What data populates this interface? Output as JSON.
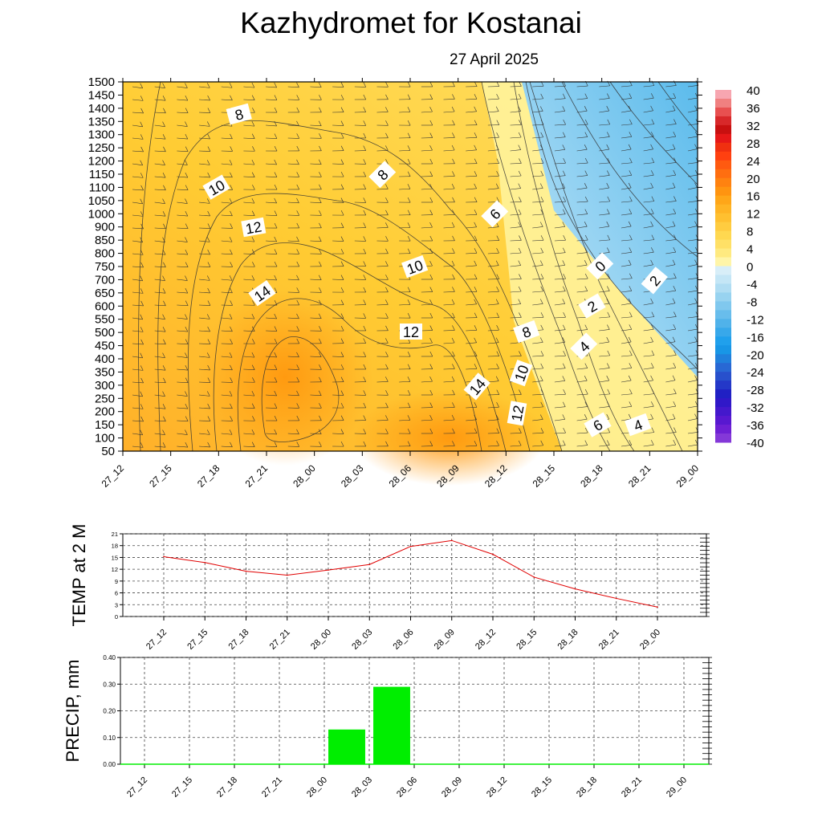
{
  "header": {
    "title": "Kazhydromet  for Kostanai",
    "date": "27 April 2025"
  },
  "chart_data": [
    {
      "type": "heatmap",
      "title": "",
      "x": [
        "27_12",
        "27_15",
        "27_18",
        "27_21",
        "28_00",
        "28_03",
        "28_06",
        "28_09",
        "28_12",
        "28_15",
        "28_18",
        "28_21",
        "29_00"
      ],
      "y": [
        50,
        100,
        150,
        200,
        250,
        300,
        350,
        400,
        450,
        500,
        550,
        600,
        650,
        700,
        750,
        800,
        850,
        900,
        1000,
        1050,
        1100,
        1150,
        1200,
        1250,
        1300,
        1350,
        1400,
        1450,
        1500
      ],
      "ylim": [
        50,
        1500
      ],
      "colorbar": {
        "labels": [
          "40",
          "36",
          "32",
          "28",
          "24",
          "20",
          "16",
          "12",
          "8",
          "4",
          "0",
          "-4",
          "-8",
          "-12",
          "-16",
          "-20",
          "-24",
          "-28",
          "-32",
          "-36",
          "-40"
        ],
        "placement": "right"
      },
      "contour_labels": [
        "8",
        "10",
        "12",
        "14",
        "8",
        "6",
        "10",
        "12",
        "14",
        "8",
        "10",
        "12",
        "0",
        "2",
        "4",
        "2",
        "6",
        "4"
      ],
      "grid": true
    },
    {
      "type": "line",
      "ylabel": "TEMP at 2 M",
      "x": [
        "27_12",
        "27_15",
        "27_18",
        "27_21",
        "28_00",
        "28_03",
        "28_06",
        "28_09",
        "28_12",
        "28_15",
        "28_18",
        "28_21",
        "29_00"
      ],
      "series": [
        {
          "values": [
            15.2,
            13.7,
            11.5,
            10.5,
            11.8,
            13.2,
            17.8,
            19.3,
            15.8,
            10.0,
            7.0,
            4.6,
            2.4
          ],
          "color": "#e00000"
        }
      ],
      "ylim": [
        0,
        21
      ],
      "yticks": [
        "0",
        "3",
        "6",
        "9",
        "12",
        "15",
        "18",
        "21"
      ],
      "grid": true
    },
    {
      "type": "bar",
      "ylabel": "PRECIP, mm",
      "categories": [
        "27_12",
        "27_15",
        "27_18",
        "27_21",
        "28_00",
        "28_03",
        "28_06",
        "28_09",
        "28_12",
        "28_15",
        "28_18",
        "28_21",
        "29_00"
      ],
      "values": [
        0,
        0,
        0,
        0,
        0,
        0.13,
        0.29,
        0,
        0,
        0,
        0,
        0,
        0
      ],
      "ylim": [
        0,
        0.4
      ],
      "yticks": [
        "0.00",
        "0.10",
        "0.20",
        "0.30",
        "0.40"
      ],
      "color": "#00ee00",
      "grid": true
    }
  ]
}
